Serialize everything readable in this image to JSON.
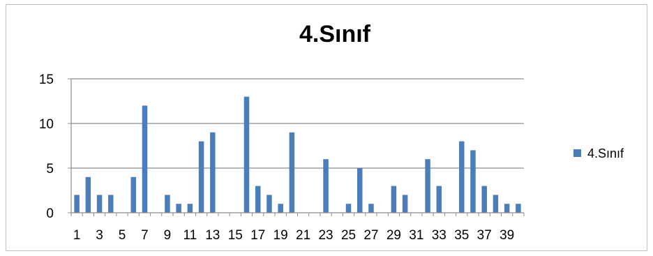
{
  "chart_data": {
    "type": "bar",
    "title": "4.Sınıf",
    "xlabel": "",
    "ylabel": "",
    "categories": [
      "1",
      "2",
      "3",
      "4",
      "5",
      "6",
      "7",
      "8",
      "9",
      "10",
      "11",
      "12",
      "13",
      "14",
      "15",
      "16",
      "17",
      "18",
      "19",
      "20",
      "21",
      "22",
      "23",
      "24",
      "25",
      "26",
      "27",
      "28",
      "29",
      "30",
      "31",
      "32",
      "33",
      "34",
      "35",
      "36",
      "37",
      "38",
      "39",
      "40"
    ],
    "x_tick_labels": [
      "1",
      "3",
      "5",
      "7",
      "9",
      "11",
      "13",
      "15",
      "17",
      "19",
      "21",
      "23",
      "25",
      "27",
      "29",
      "31",
      "33",
      "35",
      "37",
      "39"
    ],
    "series": [
      {
        "name": "4.Sınıf",
        "color": "#4a7ebb",
        "values": [
          2,
          4,
          2,
          2,
          0,
          4,
          12,
          0,
          2,
          1,
          1,
          8,
          9,
          0,
          0,
          13,
          3,
          2,
          1,
          9,
          0,
          0,
          6,
          0,
          1,
          5,
          1,
          0,
          3,
          2,
          0,
          6,
          3,
          0,
          8,
          7,
          3,
          2,
          1,
          1
        ]
      }
    ],
    "ylim": [
      0,
      15
    ],
    "y_ticks": [
      0,
      5,
      10,
      15
    ],
    "grid": true,
    "legend": "right"
  }
}
